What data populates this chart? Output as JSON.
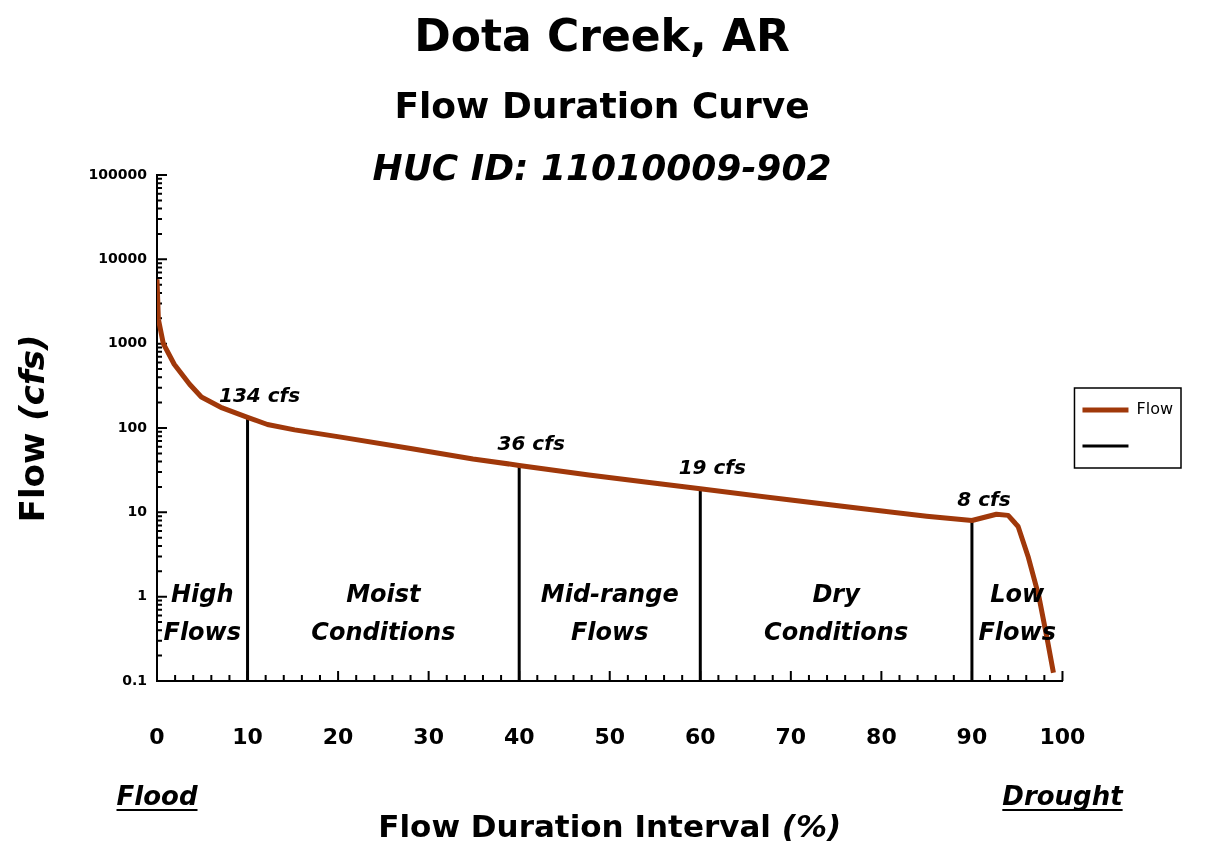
{
  "chart_data": {
    "type": "line",
    "title": "Dota Creek, AR",
    "subtitle": "Flow Duration Curve\nHUC ID: 11010009-902",
    "xlabel": "Flow Duration Interval (%)",
    "ylabel": "Flow (cfs)",
    "series": [
      {
        "name": "Flow",
        "color": "#a0380a",
        "x": [
          0,
          0.15,
          0.7,
          1.9,
          3.6,
          4.9,
          7.2,
          10,
          12.2,
          15.2,
          20.3,
          28,
          34.9,
          40,
          47.7,
          53.7,
          60,
          70,
          78,
          85,
          90,
          92.7,
          94,
          95.1,
          96.2,
          97.4,
          98.3,
          99
        ],
        "values": [
          5800,
          1950,
          1000,
          570,
          330,
          233,
          173,
          134,
          110,
          95,
          78,
          57,
          43,
          36,
          27.7,
          23,
          19,
          14,
          11,
          9,
          8,
          9.5,
          9.2,
          6.8,
          3.0,
          1.0,
          0.32,
          0.125
        ]
      },
      {
        "type": "bar",
        "color": "#000000",
        "x": [
          10,
          40,
          60,
          90
        ],
        "values": [
          134,
          36,
          19,
          8
        ],
        "value_labels": [
          "134 cfs",
          "36 cfs",
          "19 cfs",
          "8 cfs"
        ]
      }
    ],
    "xlim": [
      0,
      100
    ],
    "xticks": [
      0,
      {
        "value": 2,
        "label": null
      },
      {
        "value": 4,
        "label": null
      },
      {
        "value": 6,
        "label": null
      },
      {
        "value": 8,
        "label": null
      },
      10,
      {
        "value": 12,
        "label": null
      },
      {
        "value": 14,
        "label": null
      },
      {
        "value": 16,
        "label": null
      },
      {
        "value": 18,
        "label": null
      },
      20,
      {
        "value": 22,
        "label": null
      },
      {
        "value": 24,
        "label": null
      },
      {
        "value": 26,
        "label": null
      },
      {
        "value": 28,
        "label": null
      },
      30,
      {
        "value": 32,
        "label": null
      },
      {
        "value": 34,
        "label": null
      },
      {
        "value": 36,
        "label": null
      },
      {
        "value": 38,
        "label": null
      },
      40,
      {
        "value": 42,
        "label": null
      },
      {
        "value": 44,
        "label": null
      },
      {
        "value": 46,
        "label": null
      },
      {
        "value": 48,
        "label": null
      },
      50,
      {
        "value": 52,
        "label": null
      },
      {
        "value": 54,
        "label": null
      },
      {
        "value": 56,
        "label": null
      },
      {
        "value": 58,
        "label": null
      },
      60,
      {
        "value": 62,
        "label": null
      },
      {
        "value": 64,
        "label": null
      },
      {
        "value": 66,
        "label": null
      },
      {
        "value": 68,
        "label": null
      },
      70,
      {
        "value": 72,
        "label": null
      },
      {
        "value": 74,
        "label": null
      },
      {
        "value": 76,
        "label": null
      },
      {
        "value": 78,
        "label": null
      },
      80,
      {
        "value": 82,
        "label": null
      },
      {
        "value": 84,
        "label": null
      },
      {
        "value": 86,
        "label": null
      },
      {
        "value": 88,
        "label": null
      },
      90,
      {
        "value": 92,
        "label": null
      },
      {
        "value": 94,
        "label": null
      },
      {
        "value": 96,
        "label": null
      },
      {
        "value": 98,
        "label": null
      },
      100
    ],
    "ylim": [
      0.1,
      100000
    ],
    "yticks": [
      0.1,
      {
        "value": 0.2,
        "label": null
      },
      {
        "value": 0.3,
        "label": null
      },
      {
        "value": 0.4,
        "label": null
      },
      {
        "value": 0.5,
        "label": null
      },
      {
        "value": 0.6,
        "label": null
      },
      {
        "value": 0.7,
        "label": null
      },
      {
        "value": 0.8,
        "label": null
      },
      {
        "value": 0.9,
        "label": null
      },
      1,
      {
        "value": 2,
        "label": null
      },
      {
        "value": 3,
        "label": null
      },
      {
        "value": 4,
        "label": null
      },
      {
        "value": 5,
        "label": null
      },
      {
        "value": 6,
        "label": null
      },
      {
        "value": 7,
        "label": null
      },
      {
        "value": 8,
        "label": null
      },
      {
        "value": 9,
        "label": null
      },
      10,
      {
        "value": 20,
        "label": null
      },
      {
        "value": 30,
        "label": null
      },
      {
        "value": 40,
        "label": null
      },
      {
        "value": 50,
        "label": null
      },
      {
        "value": 60,
        "label": null
      },
      {
        "value": 70,
        "label": null
      },
      {
        "value": 80,
        "label": null
      },
      {
        "value": 90,
        "label": null
      },
      100,
      {
        "value": 200,
        "label": null
      },
      {
        "value": 300,
        "label": null
      },
      {
        "value": 400,
        "label": null
      },
      {
        "value": 500,
        "label": null
      },
      {
        "value": 600,
        "label": null
      },
      {
        "value": 700,
        "label": null
      },
      {
        "value": 800,
        "label": null
      },
      {
        "value": 900,
        "label": null
      },
      1000,
      {
        "value": 2000,
        "label": null
      },
      {
        "value": 3000,
        "label": null
      },
      {
        "value": 4000,
        "label": null
      },
      {
        "value": 5000,
        "label": null
      },
      {
        "value": 6000,
        "label": null
      },
      {
        "value": 7000,
        "label": null
      },
      {
        "value": 8000,
        "label": null
      },
      {
        "value": 9000,
        "label": null
      },
      10000,
      {
        "value": 20000,
        "label": null
      },
      {
        "value": 30000,
        "label": null
      },
      {
        "value": 40000,
        "label": null
      },
      {
        "value": 50000,
        "label": null
      },
      {
        "value": 60000,
        "label": null
      },
      {
        "value": 70000,
        "label": null
      },
      {
        "value": 80000,
        "label": null
      },
      {
        "value": 90000,
        "label": null
      },
      100000
    ],
    "log": "y",
    "grid": false,
    "legend": "right",
    "marker": "none",
    "annotations": [
      "High Flows",
      "Moist Conditions",
      "Mid-range Flows",
      "Dry Conditions",
      "Low Flows",
      "Flood",
      "Drought"
    ]
  }
}
